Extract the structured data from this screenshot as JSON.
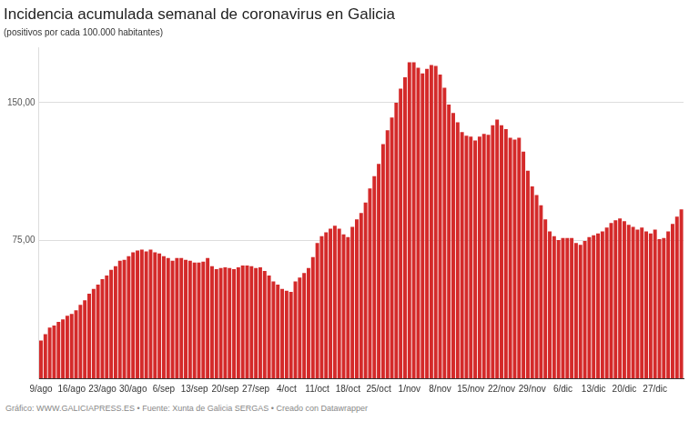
{
  "chart_data": {
    "type": "bar",
    "title": "Incidencia acumulada semanal de coronavirus en Galicia",
    "subtitle": "(positivos por cada 100.000 habitantes)",
    "source": "Gráfico: WWW.GALICIAPRESS.ES • Fuente: Xunta de Galicia SERGAS • Creado con Datawrapper",
    "categories": [
      "9/ago",
      null,
      null,
      null,
      null,
      null,
      null,
      "16/ago",
      null,
      null,
      null,
      null,
      null,
      null,
      "23/ago",
      null,
      null,
      null,
      null,
      null,
      null,
      "30/ago",
      null,
      null,
      null,
      null,
      null,
      null,
      "6/sep",
      null,
      null,
      null,
      null,
      null,
      null,
      "13/sep",
      null,
      null,
      null,
      null,
      null,
      null,
      "20/sep",
      null,
      null,
      null,
      null,
      null,
      null,
      "27/sep",
      null,
      null,
      null,
      null,
      null,
      null,
      "4/oct",
      null,
      null,
      null,
      null,
      null,
      null,
      "11/oct",
      null,
      null,
      null,
      null,
      null,
      null,
      "18/oct",
      null,
      null,
      null,
      null,
      null,
      null,
      "25/oct",
      null,
      null,
      null,
      null,
      null,
      null,
      "1/nov",
      null,
      null,
      null,
      null,
      null,
      null,
      "8/nov",
      null,
      null,
      null,
      null,
      null,
      null,
      "15/nov",
      null,
      null,
      null,
      null,
      null,
      null,
      "22/nov",
      null,
      null,
      null,
      null,
      null,
      null,
      "29/nov",
      null,
      null,
      null,
      null,
      null,
      null,
      "6/dic",
      null,
      null,
      null,
      null,
      null,
      null,
      "13/dic",
      null,
      null,
      null,
      null,
      null,
      null,
      "20/dic",
      null,
      null,
      null,
      null,
      null,
      null,
      "27/dic",
      null,
      null,
      null,
      null,
      null,
      null
    ],
    "values": [
      20.5,
      24,
      27.6,
      28.7,
      30.7,
      32,
      34,
      35,
      37,
      40,
      42.5,
      46,
      48.6,
      51,
      54,
      56,
      59,
      61,
      64,
      64.5,
      66.5,
      68.6,
      69.6,
      70,
      69,
      70,
      68.6,
      68,
      66.5,
      65.5,
      64,
      65.5,
      65.5,
      64.5,
      64,
      63,
      63,
      63.5,
      65.5,
      61,
      59.4,
      60,
      60.4,
      60,
      59.4,
      60.4,
      61.4,
      61.4,
      61,
      60,
      60.4,
      58.4,
      56,
      52.7,
      51,
      48.6,
      47.6,
      47,
      52.7,
      54.8,
      57.3,
      60,
      66,
      73.7,
      77.3,
      79.4,
      81.4,
      83,
      81.4,
      78.3,
      76.8,
      82.4,
      86.5,
      90,
      95.7,
      103.4,
      110,
      116.7,
      127.5,
      135,
      142,
      150,
      157.7,
      163.8,
      172,
      172,
      169,
      166,
      168.4,
      170.5,
      170,
      165.4,
      158.2,
      149,
      144.4,
      139.3,
      134,
      132,
      131.6,
      129.5,
      131.6,
      133,
      132.6,
      137.7,
      140.8,
      137.7,
      135.7,
      131,
      130,
      131,
      123.4,
      113,
      104.4,
      99.8,
      94.2,
      86.5,
      80,
      77.3,
      75.3,
      76.3,
      76.3,
      76.3,
      73.7,
      72.7,
      74.8,
      76.8,
      77.8,
      78.8,
      80,
      82,
      84.5,
      86,
      87,
      85.5,
      83.5,
      82.4,
      80.9,
      82,
      80,
      78.8,
      80.9,
      75.8,
      76.3,
      80,
      84,
      88,
      92
    ],
    "color": "#d42a2a",
    "ylim": [
      0,
      180
    ],
    "yticks": [
      {
        "value": 75,
        "label": "75,00"
      },
      {
        "value": 150,
        "label": "150,00"
      }
    ],
    "grid": true
  }
}
